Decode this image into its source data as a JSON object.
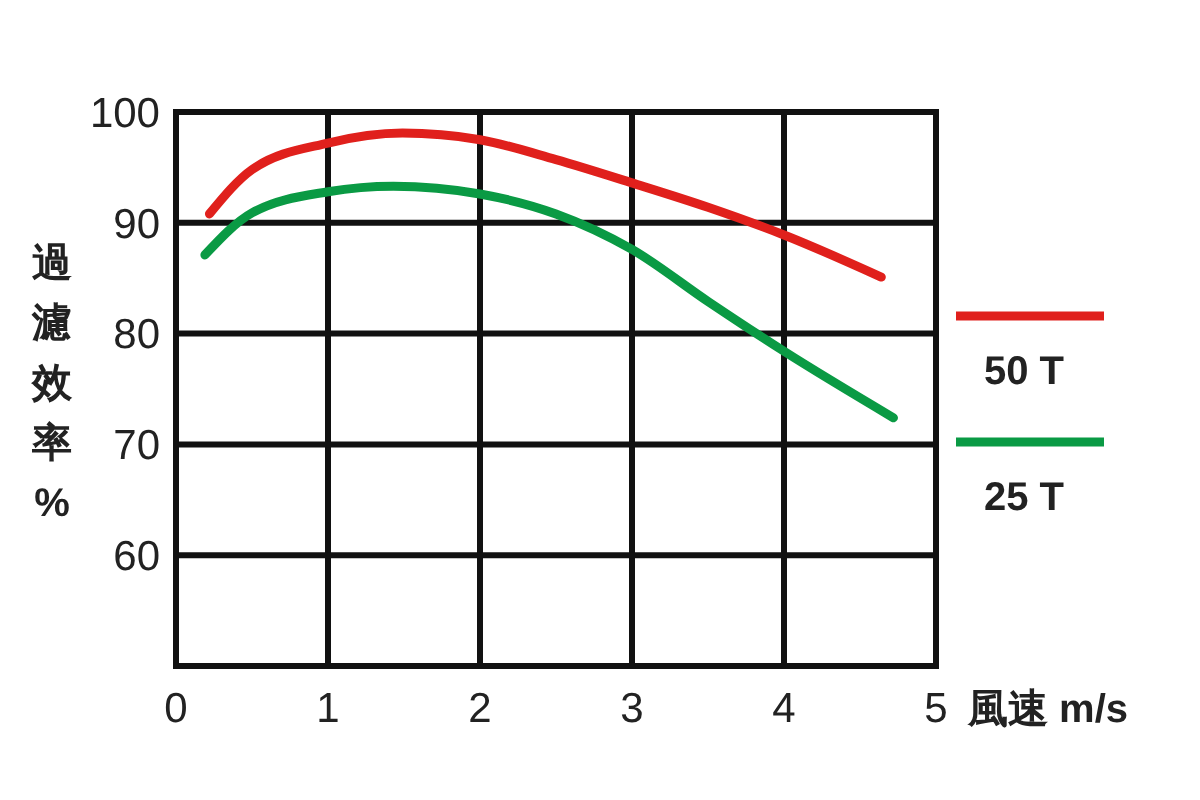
{
  "chart_data": {
    "type": "line",
    "xlabel": "風速 m/s",
    "ylabel": "過濾效率%",
    "xlim": [
      0,
      5
    ],
    "xticks": [
      0,
      1,
      2,
      3,
      4,
      5
    ],
    "ylim": [
      50,
      100
    ],
    "yticks": [
      60,
      70,
      80,
      90,
      100
    ],
    "grid": true,
    "legend": "right",
    "series": [
      {
        "name": "50 T",
        "color": "#e0201c",
        "x": [
          0.22,
          0.5,
          1,
          1.49,
          2,
          2.5,
          3,
          3.5,
          4,
          4.64
        ],
        "values": [
          90.8,
          94.8,
          97.2,
          98.1,
          97.5,
          95.7,
          93.6,
          91.4,
          88.9,
          85.1
        ]
      },
      {
        "name": "25 T",
        "color": "#0a9a44",
        "x": [
          0.19,
          0.5,
          1,
          1.43,
          2,
          2.5,
          3,
          3.5,
          4,
          4.72
        ],
        "values": [
          87.1,
          90.9,
          92.8,
          93.3,
          92.6,
          90.8,
          87.6,
          82.9,
          78.4,
          72.4
        ]
      }
    ]
  }
}
